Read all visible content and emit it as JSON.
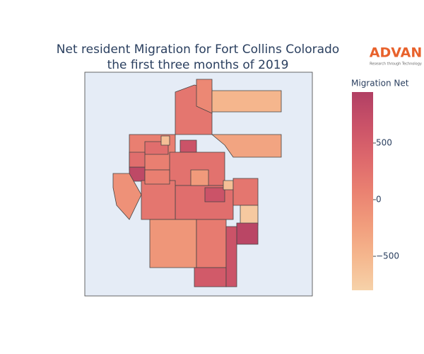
{
  "header": {
    "title_line1": "Net resident Migration for Fort Collins Colorado",
    "title_line2": "the first three months of 2019",
    "logo": "ADVAN",
    "logo_tagline": "Research through Technology"
  },
  "chart_data": {
    "type": "choropleth",
    "colorbar_title": "Migration Net",
    "clim": [
      -800,
      950
    ],
    "cticks": [
      {
        "value": -500,
        "label": "−500"
      },
      0,
      500
    ],
    "colorscale": [
      "#f6d2a9",
      "#f5b78e",
      "#f19c7c",
      "#ea8171",
      "#dd686c",
      "#ca5268",
      "#b13f64"
    ],
    "values": [
      200,
      0,
      -500,
      -300,
      100,
      800,
      300,
      650,
      -600,
      -100,
      250,
      300,
      650,
      -600,
      200,
      -700,
      200,
      -150,
      150,
      850,
      550,
      650,
      100,
      -200,
      300
    ]
  }
}
